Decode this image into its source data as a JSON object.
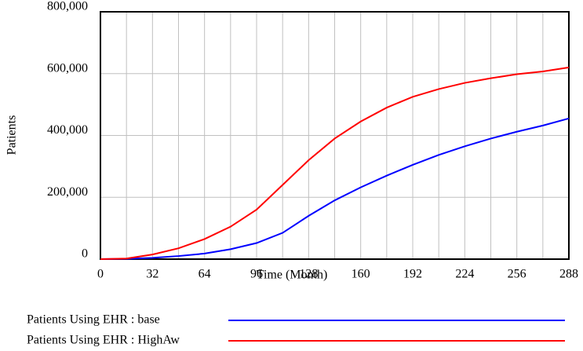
{
  "chart_data": {
    "type": "line",
    "x_label": "Time (Month)",
    "y_label": "Patients",
    "x": [
      0,
      16,
      32,
      48,
      64,
      80,
      96,
      112,
      128,
      144,
      160,
      176,
      192,
      208,
      224,
      240,
      256,
      272,
      288
    ],
    "series": [
      {
        "name": "Patients Using EHR : base",
        "color": "#0000ff",
        "values": [
          0,
          1000,
          4000,
          10000,
          18000,
          32000,
          52000,
          85000,
          140000,
          190000,
          232000,
          270000,
          305000,
          337000,
          365000,
          390000,
          412000,
          432000,
          455000
        ]
      },
      {
        "name": "Patients Using EHR : HighAw",
        "color": "#ff0000",
        "values": [
          0,
          2000,
          15000,
          35000,
          65000,
          105000,
          160000,
          240000,
          320000,
          390000,
          445000,
          490000,
          525000,
          550000,
          570000,
          585000,
          598000,
          607000,
          620000
        ]
      }
    ],
    "xlim": [
      0,
      288
    ],
    "xticks": [
      0,
      32,
      64,
      96,
      128,
      160,
      192,
      224,
      256,
      288
    ],
    "ylim": [
      0,
      800000
    ],
    "yticks": [
      0,
      {
        "value": 200000,
        "label": "200,000"
      },
      {
        "value": 400000,
        "label": "400,000"
      },
      {
        "value": 600000,
        "label": "600,000"
      },
      {
        "value": 800000,
        "label": "800,000"
      }
    ],
    "grid": true,
    "x_minor_grid": true
  }
}
